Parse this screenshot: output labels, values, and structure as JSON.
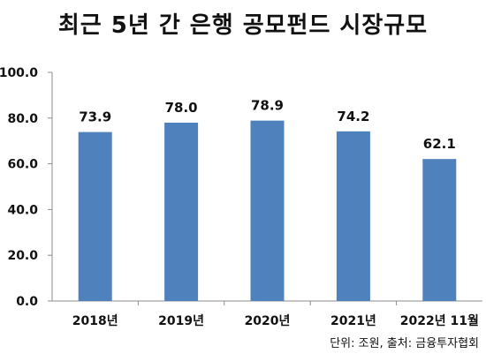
{
  "chart_data": {
    "type": "bar",
    "title": "최근 5년 간 은행 공모펀드 시장규모",
    "categories": [
      "2018년",
      "2019년",
      "2020년",
      "2021년",
      "2022년 11월"
    ],
    "values": [
      73.9,
      78.0,
      78.9,
      74.2,
      62.1
    ],
    "value_labels": [
      "73.9",
      "78.0",
      "78.9",
      "74.2",
      "62.1"
    ],
    "ylim": [
      0,
      100
    ],
    "yticks": [
      "0.0",
      "20.0",
      "40.0",
      "60.0",
      "80.0",
      "100.0"
    ],
    "ytick_values": [
      0,
      20,
      40,
      60,
      80,
      100
    ],
    "xlabel": "",
    "ylabel": "",
    "grid": false,
    "bar_color": "#4F81BD",
    "note": "단위: 조원, 출처: 금융투자협회"
  }
}
